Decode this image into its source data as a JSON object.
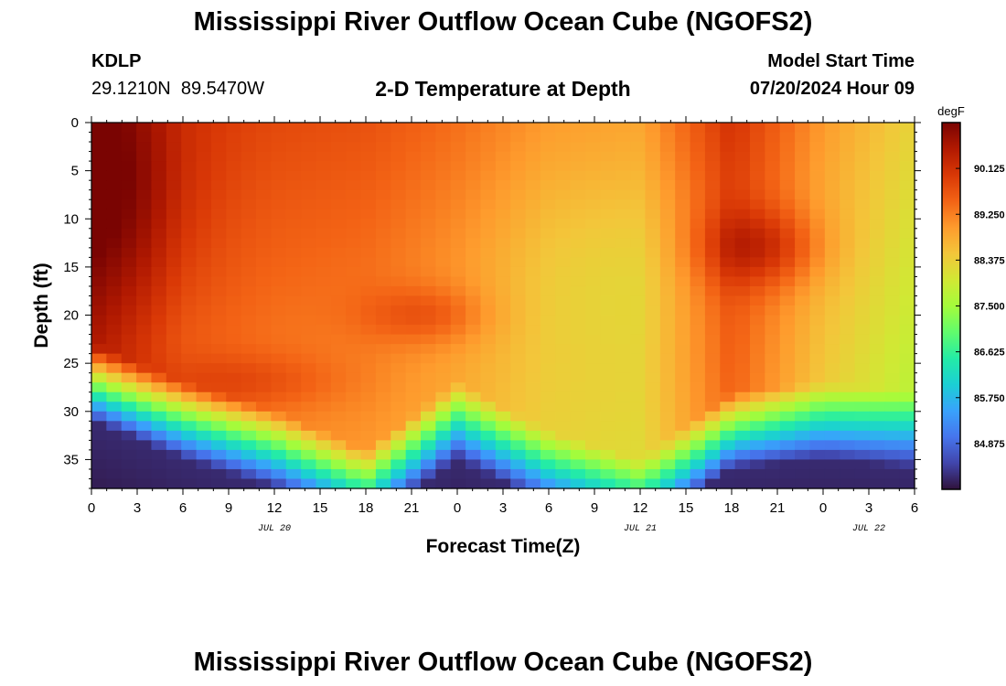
{
  "page": {
    "title": "Mississippi River Outflow Ocean Cube (NGOFS2)",
    "footer_title": "Mississippi River Outflow Ocean Cube (NGOFS2)",
    "station_id": "KDLP",
    "coordinates": "29.1210N  89.5470W",
    "subtitle": "2-D Temperature at Depth",
    "model_start_label": "Model Start Time",
    "model_start_value": "07/20/2024 Hour 09"
  },
  "chart_data": {
    "type": "heatmap",
    "title": "2-D Temperature at Depth",
    "xlabel": "Forecast Time(Z)",
    "ylabel": "Depth (ft)",
    "x_range_hours": [
      0,
      54
    ],
    "y_range_ft": [
      0,
      38
    ],
    "x_ticks": [
      "0",
      "3",
      "6",
      "9",
      "12",
      "15",
      "18",
      "21",
      "0",
      "3",
      "6",
      "9",
      "12",
      "15",
      "18",
      "21",
      "0",
      "3",
      "6"
    ],
    "x_tick_hours": [
      0,
      3,
      6,
      9,
      12,
      15,
      18,
      21,
      24,
      27,
      30,
      33,
      36,
      39,
      42,
      45,
      48,
      51,
      54
    ],
    "y_ticks": [
      0,
      5,
      10,
      15,
      20,
      25,
      30,
      35
    ],
    "date_labels": [
      {
        "label": "JUL 20",
        "hour": 12
      },
      {
        "label": "JUL 21",
        "hour": 36
      },
      {
        "label": "JUL 22",
        "hour": 51
      }
    ],
    "colorbar": {
      "unit": "degF",
      "min": 84.0,
      "max": 91.0,
      "ticks": [
        "90.125",
        "89.250",
        "88.375",
        "87.500",
        "86.625",
        "85.750",
        "84.875"
      ],
      "colors": [
        "#30123b",
        "#4145ab",
        "#4675ed",
        "#39a2fc",
        "#1bcfd4",
        "#24eca6",
        "#61fc6c",
        "#a4fc3b",
        "#d1e834",
        "#f3c63a",
        "#fe9b2d",
        "#f36315",
        "#d93806",
        "#b11901",
        "#7a0402"
      ]
    },
    "surface_temp_profile_degF": {
      "hours": [
        0,
        6,
        12,
        18,
        24,
        30,
        36,
        42,
        48,
        54
      ],
      "surface": [
        90.9,
        90.0,
        89.8,
        89.7,
        89.4,
        89.0,
        88.9,
        90.1,
        89.0,
        88.3
      ],
      "thermocline_depth_ft": [
        23,
        27,
        30,
        34,
        27,
        32,
        35,
        28,
        27,
        28
      ]
    }
  }
}
